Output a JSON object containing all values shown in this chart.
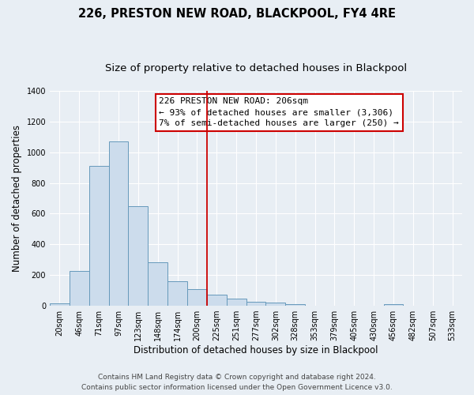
{
  "title": "226, PRESTON NEW ROAD, BLACKPOOL, FY4 4RE",
  "subtitle": "Size of property relative to detached houses in Blackpool",
  "xlabel": "Distribution of detached houses by size in Blackpool",
  "ylabel": "Number of detached properties",
  "bin_labels": [
    "20sqm",
    "46sqm",
    "71sqm",
    "97sqm",
    "123sqm",
    "148sqm",
    "174sqm",
    "200sqm",
    "225sqm",
    "251sqm",
    "277sqm",
    "302sqm",
    "328sqm",
    "353sqm",
    "379sqm",
    "405sqm",
    "430sqm",
    "456sqm",
    "482sqm",
    "507sqm",
    "533sqm"
  ],
  "bar_values": [
    15,
    225,
    910,
    1070,
    650,
    285,
    160,
    110,
    75,
    45,
    25,
    20,
    12,
    0,
    0,
    0,
    0,
    10,
    0,
    0,
    0
  ],
  "bar_color": "#ccdcec",
  "bar_edge_color": "#6699bb",
  "vline_x": 7.5,
  "vline_color": "#cc0000",
  "annotation_title": "226 PRESTON NEW ROAD: 206sqm",
  "annotation_line1": "← 93% of detached houses are smaller (3,306)",
  "annotation_line2": "7% of semi-detached houses are larger (250) →",
  "annotation_box_facecolor": "#ffffff",
  "annotation_box_edgecolor": "#cc0000",
  "ylim": [
    0,
    1400
  ],
  "yticks": [
    0,
    200,
    400,
    600,
    800,
    1000,
    1200,
    1400
  ],
  "footer_line1": "Contains HM Land Registry data © Crown copyright and database right 2024.",
  "footer_line2": "Contains public sector information licensed under the Open Government Licence v3.0.",
  "bg_color": "#e8eef4",
  "plot_bg_color": "#e8eef4",
  "grid_color": "#ffffff",
  "title_fontsize": 10.5,
  "subtitle_fontsize": 9.5,
  "axis_label_fontsize": 8.5,
  "tick_fontsize": 7,
  "annotation_fontsize": 8,
  "footer_fontsize": 6.5
}
